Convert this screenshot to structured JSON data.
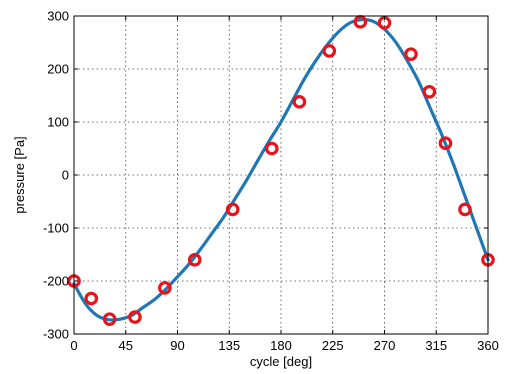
{
  "chart_data": {
    "type": "line",
    "xlabel": "cycle [deg]",
    "ylabel": "pressure [Pa]",
    "xlim": [
      0,
      360
    ],
    "ylim": [
      -300,
      300
    ],
    "xticks": [
      0,
      45,
      90,
      135,
      180,
      225,
      270,
      315,
      360
    ],
    "yticks": [
      -300,
      -200,
      -100,
      0,
      100,
      200,
      300
    ],
    "grid": true,
    "colors": {
      "curve": "#1f77b4",
      "markers": "#e8141c"
    },
    "series": [
      {
        "type": "line",
        "x": [
          0,
          10,
          20,
          30,
          40,
          50,
          60,
          70,
          80,
          90,
          100,
          110,
          120,
          130,
          140,
          150,
          160,
          170,
          180,
          190,
          200,
          210,
          220,
          230,
          240,
          250,
          260,
          270,
          280,
          290,
          300,
          310,
          320,
          330,
          340,
          350,
          360
        ],
        "y": [
          -205,
          -243,
          -265,
          -273,
          -272,
          -265,
          -250,
          -235,
          -215,
          -192,
          -168,
          -140,
          -110,
          -80,
          -45,
          -10,
          28,
          65,
          100,
          140,
          180,
          215,
          245,
          270,
          287,
          293,
          290,
          275,
          250,
          215,
          175,
          125,
          75,
          20,
          -40,
          -100,
          -160
        ]
      },
      {
        "type": "scatter",
        "x": [
          0,
          15,
          31,
          53,
          79,
          105,
          138,
          172,
          196,
          222,
          249,
          270,
          293,
          309,
          323,
          340,
          360
        ],
        "y": [
          -200,
          -233,
          -272,
          -268,
          -213,
          -160,
          -65,
          50,
          138,
          234,
          289,
          287,
          228,
          157,
          60,
          -65,
          -160
        ]
      }
    ]
  }
}
